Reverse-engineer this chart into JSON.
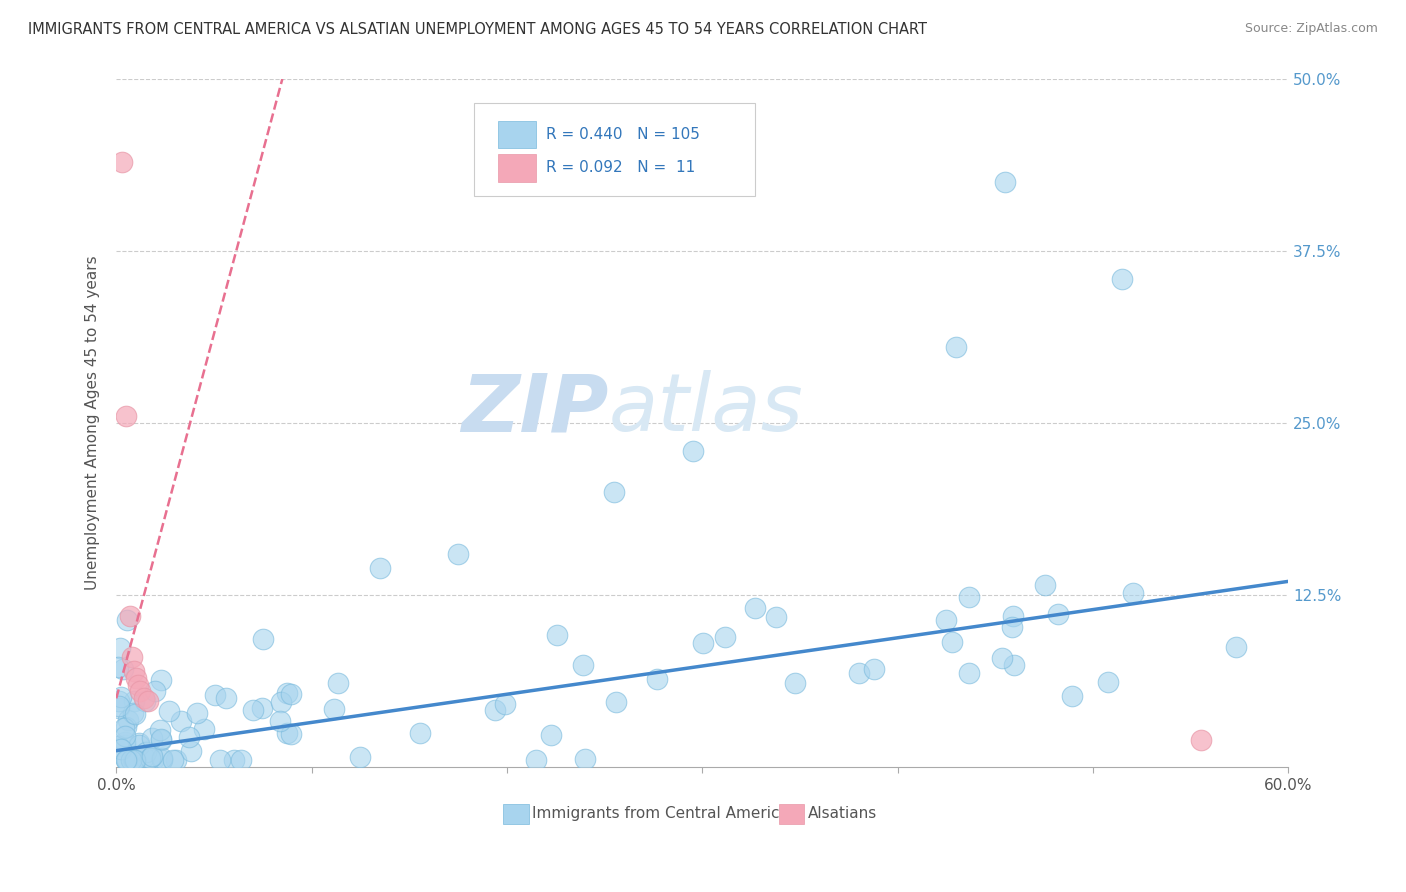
{
  "title": "IMMIGRANTS FROM CENTRAL AMERICA VS ALSATIAN UNEMPLOYMENT AMONG AGES 45 TO 54 YEARS CORRELATION CHART",
  "source": "Source: ZipAtlas.com",
  "ylabel": "Unemployment Among Ages 45 to 54 years",
  "xlim": [
    0.0,
    0.6
  ],
  "ylim": [
    0.0,
    0.5
  ],
  "blue_R": 0.44,
  "blue_N": 105,
  "pink_R": 0.092,
  "pink_N": 11,
  "blue_color": "#A8D4EE",
  "pink_color": "#F4A8B8",
  "blue_line_color": "#4488CC",
  "pink_line_color": "#E87090",
  "legend_label_blue": "Immigrants from Central America",
  "legend_label_pink": "Alsatians",
  "watermark_zip": "ZIP",
  "watermark_atlas": "atlas",
  "ytick_labels": [
    "",
    "12.5%",
    "25.0%",
    "37.5%",
    "50.0%"
  ],
  "ytick_color": "#5599CC",
  "blue_trend_x0": 0.0,
  "blue_trend_y0": 0.012,
  "blue_trend_x1": 0.6,
  "blue_trend_y1": 0.135,
  "pink_trend_x0": 0.0,
  "pink_trend_y0": 0.05,
  "pink_trend_x1": 0.085,
  "pink_trend_y1": 0.5
}
